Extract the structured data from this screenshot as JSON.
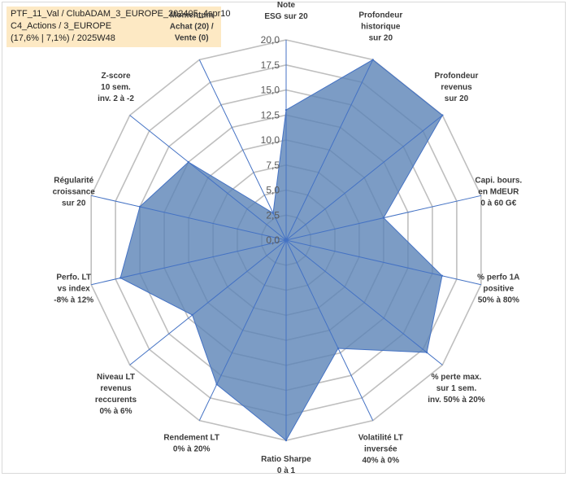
{
  "chart_data": {
    "type": "radar",
    "title_lines": [
      "PTF_11_Val / ClubADAM_3_EUROPE_202405_4spr10",
      "C4_Actions / 3_EUROPE",
      "(17,6% | 7,1%) / 2025W48"
    ],
    "rmax": 20,
    "ticks": [
      "0,0",
      "2,5",
      "5,0",
      "7,5",
      "10,0",
      "12,5",
      "15,0",
      "17,5",
      "20,0"
    ],
    "tick_values": [
      0,
      2.5,
      5,
      7.5,
      10,
      12.5,
      15,
      17.5,
      20
    ],
    "axes": [
      {
        "lines": [
          "Note",
          "ESG sur 20"
        ],
        "value": 13
      },
      {
        "lines": [
          "Profondeur",
          "historique",
          "sur 20"
        ],
        "value": 20
      },
      {
        "lines": [
          "Profondeur",
          "revenus",
          "sur 20"
        ],
        "value": 20
      },
      {
        "lines": [
          "Capi. bours.",
          "en MdEUR",
          "0 à 60 G€"
        ],
        "value": 10
      },
      {
        "lines": [
          "% perfo 1A",
          "positive",
          "50% à 80%"
        ],
        "value": 16
      },
      {
        "lines": [
          "% perte max.",
          "sur 1 sem.",
          "inv. 50% à 20%"
        ],
        "value": 18
      },
      {
        "lines": [
          "Volatilité LT",
          "inversée",
          "40% à 0%"
        ],
        "value": 12
      },
      {
        "lines": [
          "Ratio Sharpe",
          "0 à 1"
        ],
        "value": 20
      },
      {
        "lines": [
          "Rendement LT",
          "0% à 20%"
        ],
        "value": 16
      },
      {
        "lines": [
          "Niveau LT",
          "revenus",
          "reccurents",
          "0% à 6%"
        ],
        "value": 12
      },
      {
        "lines": [
          "Perfo. LT",
          "vs index",
          "-8% à 12%"
        ],
        "value": 17
      },
      {
        "lines": [
          "Régularité",
          "croissance",
          "sur 20"
        ],
        "value": 15
      },
      {
        "lines": [
          "Z-score",
          "10 sem.",
          "inv. 2 à -2"
        ],
        "value": 12.5
      },
      {
        "lines": [
          "Momentum",
          "Achat (20) /",
          "Vente (0)"
        ],
        "value": 3
      }
    ],
    "grid": true,
    "colors": {
      "fill": "#5b83b6",
      "fill_opacity": 0.8,
      "edge": "#4472c4",
      "spoke": "#4472c4",
      "grid": "#bfbfbf",
      "title_bg": "#fde9c4"
    }
  }
}
